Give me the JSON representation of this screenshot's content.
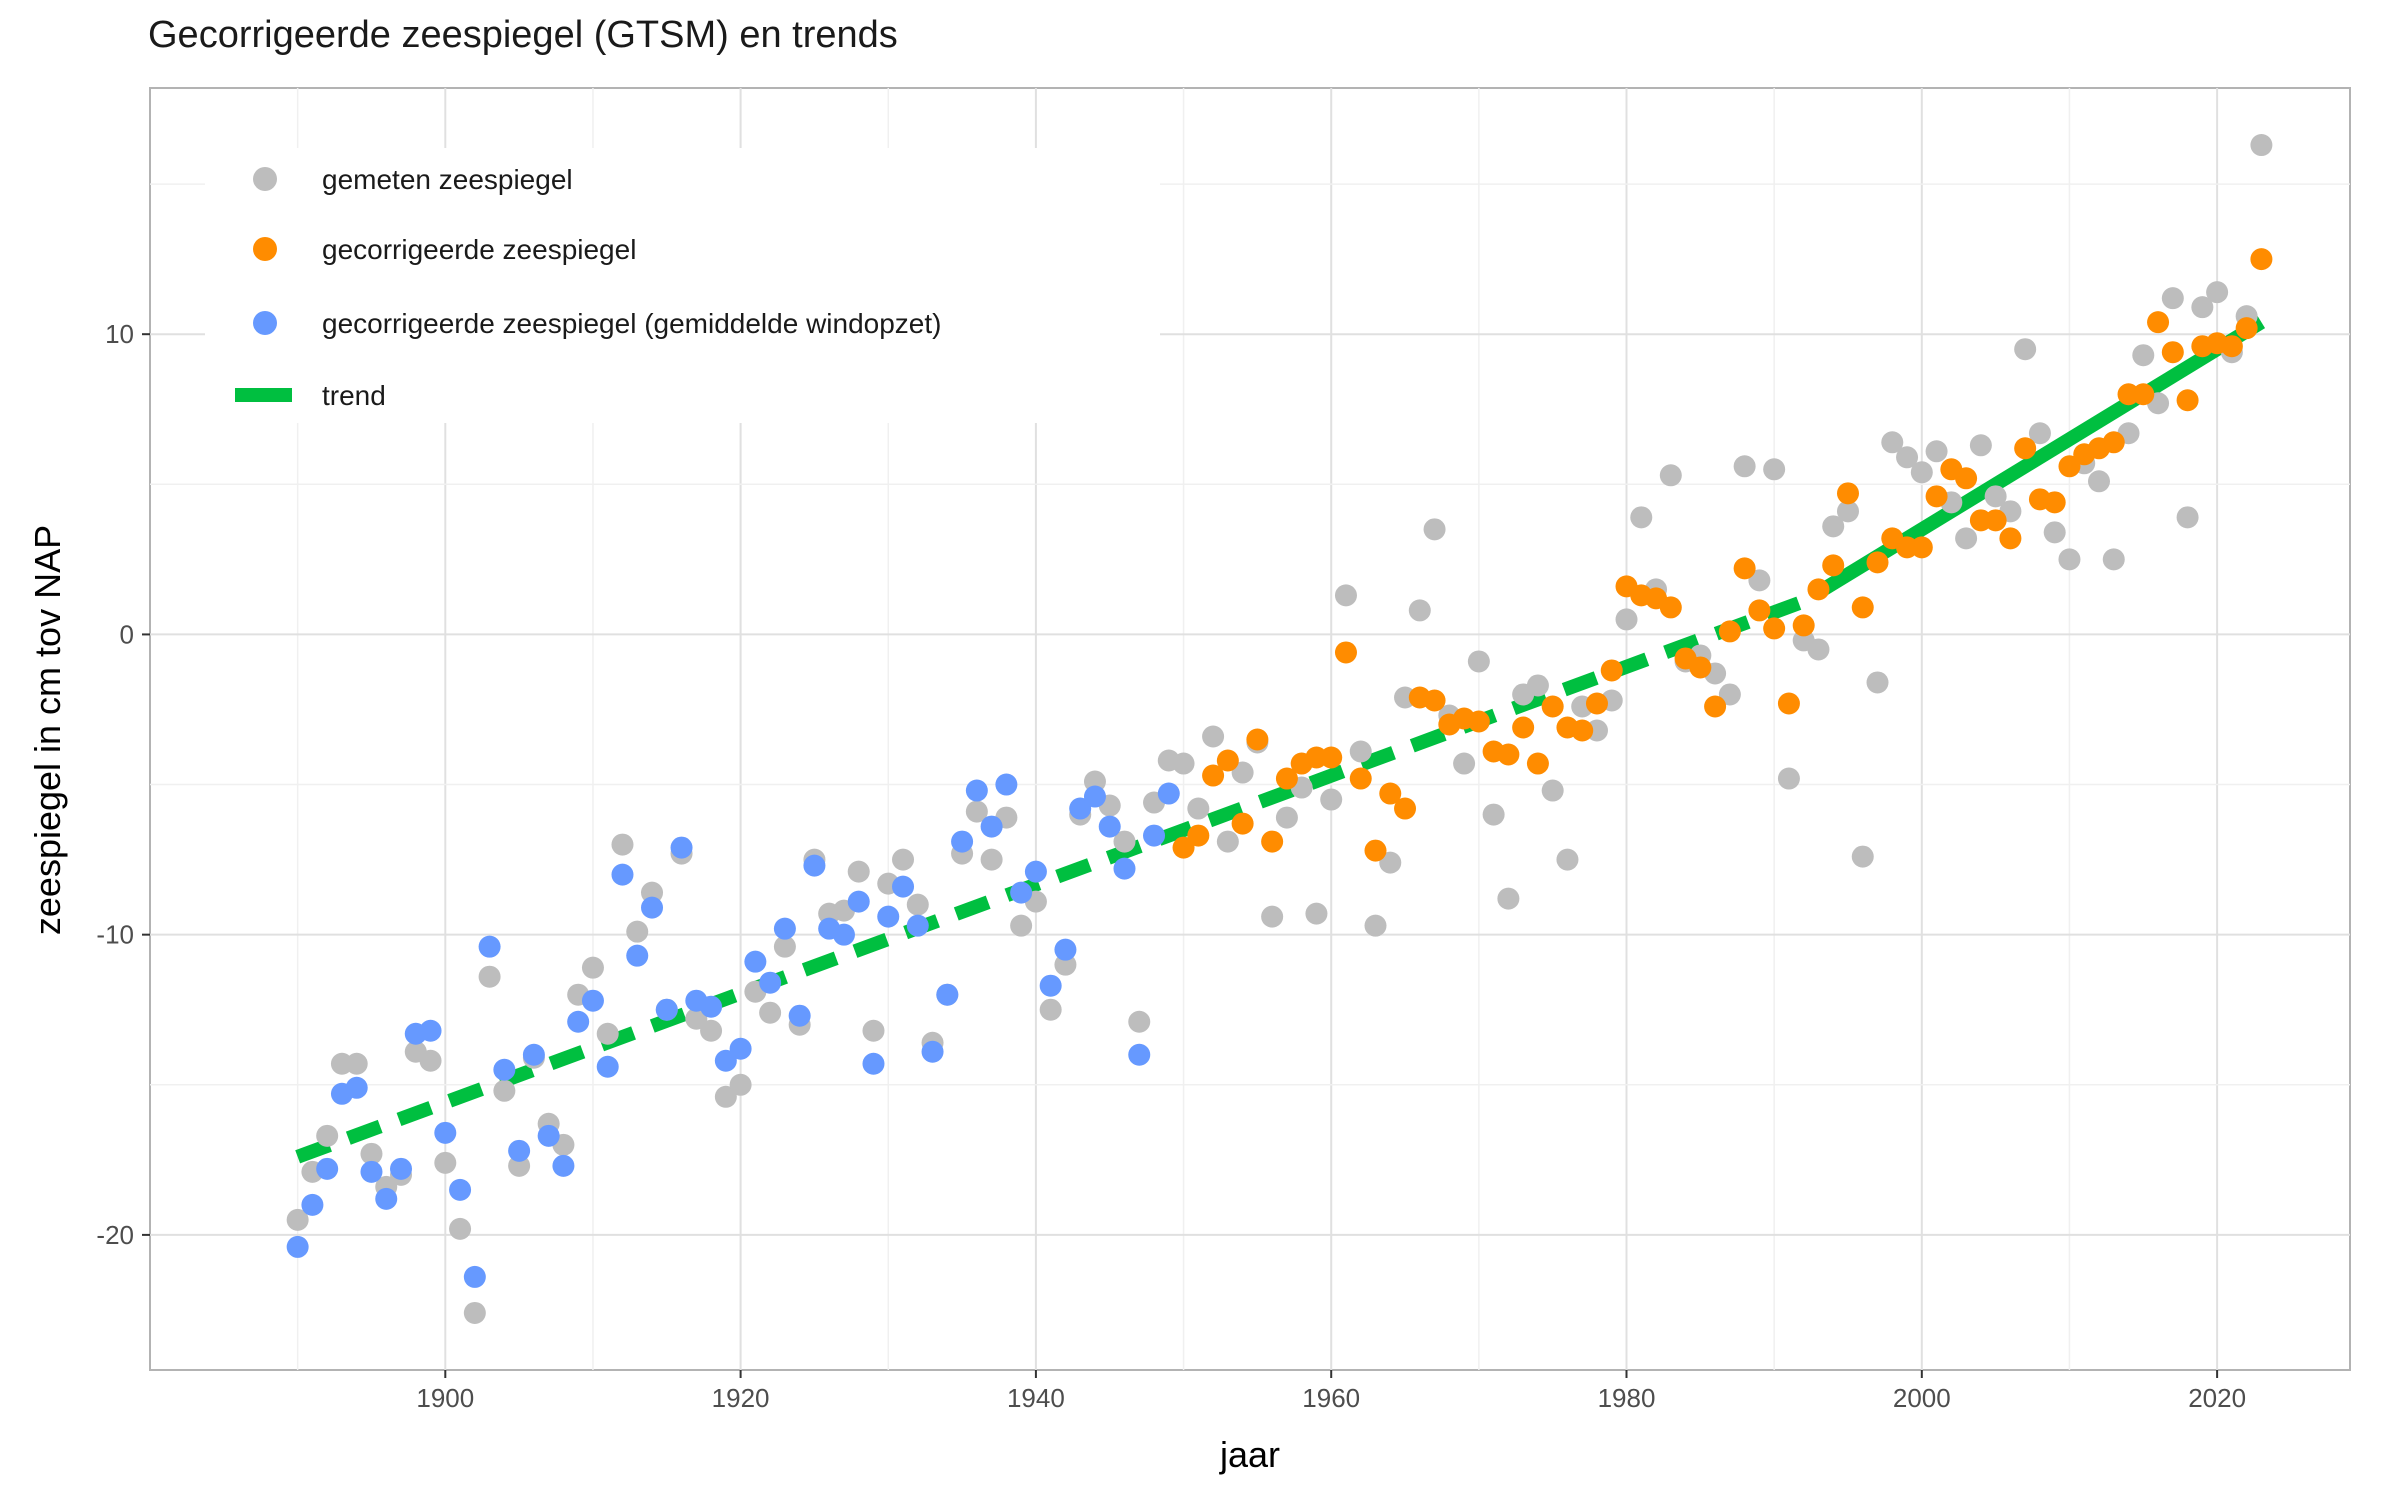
{
  "chart_data": {
    "type": "scatter",
    "title": "Gecorrigeerde zeespiegel (GTSM) en trends",
    "xlabel": "jaar",
    "ylabel": "zeespiegel in cm tov NAP",
    "xlim": [
      1880,
      2029
    ],
    "ylim": [
      -24.5,
      18.2
    ],
    "xticks": [
      1900,
      1920,
      1940,
      1960,
      1980,
      2000,
      2020
    ],
    "yticks": [
      -20,
      -10,
      0,
      10
    ],
    "grid": true,
    "legend_position": "top-left",
    "colors": {
      "measured": "#bdbdbd",
      "corrected": "#ff8c00",
      "corrected_mean_wind": "#6699ff",
      "trend": "#00bf40"
    },
    "series": [
      {
        "name": "gemeten zeespiegel",
        "type": "scatter",
        "points": [
          [
            1890,
            -19.5
          ],
          [
            1891,
            -17.9
          ],
          [
            1892,
            -16.7
          ],
          [
            1893,
            -14.3
          ],
          [
            1894,
            -14.3
          ],
          [
            1895,
            -17.3
          ],
          [
            1896,
            -18.4
          ],
          [
            1897,
            -18
          ],
          [
            1898,
            -13.9
          ],
          [
            1899,
            -14.2
          ],
          [
            1900,
            -17.6
          ],
          [
            1901,
            -19.8
          ],
          [
            1902,
            -22.6
          ],
          [
            1903,
            -11.4
          ],
          [
            1904,
            -15.2
          ],
          [
            1905,
            -17.7
          ],
          [
            1906,
            -14.1
          ],
          [
            1907,
            -16.3
          ],
          [
            1908,
            -17
          ],
          [
            1909,
            -12
          ],
          [
            1910,
            -11.1
          ],
          [
            1911,
            -13.3
          ],
          [
            1912,
            -7
          ],
          [
            1913,
            -9.9
          ],
          [
            1914,
            -8.6
          ],
          [
            1915,
            -12.5
          ],
          [
            1916,
            -7.3
          ],
          [
            1917,
            -12.8
          ],
          [
            1918,
            -13.2
          ],
          [
            1919,
            -15.4
          ],
          [
            1920,
            -15
          ],
          [
            1921,
            -11.9
          ],
          [
            1922,
            -12.6
          ],
          [
            1923,
            -10.4
          ],
          [
            1924,
            -13
          ],
          [
            1925,
            -7.5
          ],
          [
            1926,
            -9.3
          ],
          [
            1927,
            -9.2
          ],
          [
            1928,
            -7.9
          ],
          [
            1929,
            -13.2
          ],
          [
            1930,
            -8.3
          ],
          [
            1931,
            -7.5
          ],
          [
            1932,
            -9
          ],
          [
            1933,
            -13.6
          ],
          [
            1934,
            -12
          ],
          [
            1935,
            -7.3
          ],
          [
            1936,
            -5.9
          ],
          [
            1937,
            -7.5
          ],
          [
            1938,
            -6.1
          ],
          [
            1939,
            -9.7
          ],
          [
            1940,
            -8.9
          ],
          [
            1941,
            -12.5
          ],
          [
            1942,
            -11
          ],
          [
            1943,
            -6
          ],
          [
            1944,
            -4.9
          ],
          [
            1945,
            -5.7
          ],
          [
            1946,
            -6.9
          ],
          [
            1947,
            -12.9
          ],
          [
            1948,
            -5.6
          ],
          [
            1949,
            -4.2
          ],
          [
            1950,
            -4.3
          ],
          [
            1951,
            -5.8
          ],
          [
            1952,
            -3.4
          ],
          [
            1953,
            -6.9
          ],
          [
            1954,
            -4.6
          ],
          [
            1955,
            -3.6
          ],
          [
            1956,
            -9.4
          ],
          [
            1957,
            -6.1
          ],
          [
            1958,
            -5.1
          ],
          [
            1959,
            -9.3
          ],
          [
            1960,
            -5.5
          ],
          [
            1961,
            1.3
          ],
          [
            1962,
            -3.9
          ],
          [
            1963,
            -9.7
          ],
          [
            1964,
            -7.6
          ],
          [
            1965,
            -2.1
          ],
          [
            1966,
            0.8
          ],
          [
            1967,
            3.5
          ],
          [
            1968,
            -2.7
          ],
          [
            1969,
            -4.3
          ],
          [
            1970,
            -0.9
          ],
          [
            1971,
            -6
          ],
          [
            1972,
            -8.8
          ],
          [
            1973,
            -2
          ],
          [
            1974,
            -1.7
          ],
          [
            1975,
            -5.2
          ],
          [
            1976,
            -7.5
          ],
          [
            1977,
            -2.4
          ],
          [
            1978,
            -3.2
          ],
          [
            1979,
            -2.2
          ],
          [
            1980,
            0.5
          ],
          [
            1981,
            3.9
          ],
          [
            1982,
            1.5
          ],
          [
            1983,
            5.3
          ],
          [
            1984,
            -0.9
          ],
          [
            1985,
            -0.7
          ],
          [
            1986,
            -1.3
          ],
          [
            1987,
            -2
          ],
          [
            1988,
            5.6
          ],
          [
            1989,
            1.8
          ],
          [
            1990,
            5.5
          ],
          [
            1991,
            -4.8
          ],
          [
            1992,
            -0.2
          ],
          [
            1993,
            -0.5
          ],
          [
            1994,
            3.6
          ],
          [
            1995,
            4.1
          ],
          [
            1996,
            -7.4
          ],
          [
            1997,
            -1.6
          ],
          [
            1998,
            6.4
          ],
          [
            1999,
            5.9
          ],
          [
            2000,
            5.4
          ],
          [
            2001,
            6.1
          ],
          [
            2002,
            4.4
          ],
          [
            2003,
            3.2
          ],
          [
            2004,
            6.3
          ],
          [
            2005,
            4.6
          ],
          [
            2006,
            4.1
          ],
          [
            2007,
            9.5
          ],
          [
            2008,
            6.7
          ],
          [
            2009,
            3.4
          ],
          [
            2010,
            2.5
          ],
          [
            2011,
            5.7
          ],
          [
            2012,
            5.1
          ],
          [
            2013,
            2.5
          ],
          [
            2014,
            6.7
          ],
          [
            2015,
            9.3
          ],
          [
            2016,
            7.7
          ],
          [
            2017,
            11.2
          ],
          [
            2018,
            3.9
          ],
          [
            2019,
            10.9
          ],
          [
            2020,
            11.4
          ],
          [
            2021,
            9.4
          ],
          [
            2022,
            10.6
          ],
          [
            2023,
            16.3
          ]
        ]
      },
      {
        "name": "gecorrigeerde zeespiegel",
        "type": "scatter",
        "points": [
          [
            1950,
            -7.1
          ],
          [
            1951,
            -6.7
          ],
          [
            1952,
            -4.7
          ],
          [
            1953,
            -4.2
          ],
          [
            1954,
            -6.3
          ],
          [
            1955,
            -3.5
          ],
          [
            1956,
            -6.9
          ],
          [
            1957,
            -4.8
          ],
          [
            1958,
            -4.3
          ],
          [
            1959,
            -4.1
          ],
          [
            1960,
            -4.1
          ],
          [
            1961,
            -0.6
          ],
          [
            1962,
            -4.8
          ],
          [
            1963,
            -7.2
          ],
          [
            1964,
            -5.3
          ],
          [
            1965,
            -5.8
          ],
          [
            1966,
            -2.1
          ],
          [
            1967,
            -2.2
          ],
          [
            1968,
            -3
          ],
          [
            1969,
            -2.8
          ],
          [
            1970,
            -2.9
          ],
          [
            1971,
            -3.9
          ],
          [
            1972,
            -4
          ],
          [
            1973,
            -3.1
          ],
          [
            1974,
            -4.3
          ],
          [
            1975,
            -2.4
          ],
          [
            1976,
            -3.1
          ],
          [
            1977,
            -3.2
          ],
          [
            1978,
            -2.3
          ],
          [
            1979,
            -1.2
          ],
          [
            1980,
            1.6
          ],
          [
            1981,
            1.3
          ],
          [
            1982,
            1.2
          ],
          [
            1983,
            0.9
          ],
          [
            1984,
            -0.8
          ],
          [
            1985,
            -1.1
          ],
          [
            1986,
            -2.4
          ],
          [
            1987,
            0.1
          ],
          [
            1988,
            2.2
          ],
          [
            1989,
            0.8
          ],
          [
            1990,
            0.2
          ],
          [
            1991,
            -2.3
          ],
          [
            1992,
            0.3
          ],
          [
            1993,
            1.5
          ],
          [
            1994,
            2.3
          ],
          [
            1995,
            4.7
          ],
          [
            1996,
            0.9
          ],
          [
            1997,
            2.4
          ],
          [
            1998,
            3.2
          ],
          [
            1999,
            2.9
          ],
          [
            2000,
            2.9
          ],
          [
            2001,
            4.6
          ],
          [
            2002,
            5.5
          ],
          [
            2003,
            5.2
          ],
          [
            2004,
            3.8
          ],
          [
            2005,
            3.8
          ],
          [
            2006,
            3.2
          ],
          [
            2007,
            6.2
          ],
          [
            2008,
            4.5
          ],
          [
            2009,
            4.4
          ],
          [
            2010,
            5.6
          ],
          [
            2011,
            6
          ],
          [
            2012,
            6.2
          ],
          [
            2013,
            6.4
          ],
          [
            2014,
            8
          ],
          [
            2015,
            8
          ],
          [
            2016,
            10.4
          ],
          [
            2017,
            9.4
          ],
          [
            2018,
            7.8
          ],
          [
            2019,
            9.6
          ],
          [
            2020,
            9.7
          ],
          [
            2021,
            9.6
          ],
          [
            2022,
            10.2
          ],
          [
            2023,
            12.5
          ]
        ]
      },
      {
        "name": "gecorrigeerde zeespiegel (gemiddelde windopzet)",
        "type": "scatter",
        "points": [
          [
            1890,
            -20.4
          ],
          [
            1891,
            -19
          ],
          [
            1892,
            -17.8
          ],
          [
            1893,
            -15.3
          ],
          [
            1894,
            -15.1
          ],
          [
            1895,
            -17.9
          ],
          [
            1896,
            -18.8
          ],
          [
            1897,
            -17.8
          ],
          [
            1898,
            -13.3
          ],
          [
            1899,
            -13.2
          ],
          [
            1900,
            -16.6
          ],
          [
            1901,
            -18.5
          ],
          [
            1902,
            -21.4
          ],
          [
            1903,
            -10.4
          ],
          [
            1904,
            -14.5
          ],
          [
            1905,
            -17.2
          ],
          [
            1906,
            -14
          ],
          [
            1907,
            -16.7
          ],
          [
            1908,
            -17.7
          ],
          [
            1909,
            -12.9
          ],
          [
            1910,
            -12.2
          ],
          [
            1911,
            -14.4
          ],
          [
            1912,
            -8
          ],
          [
            1913,
            -10.7
          ],
          [
            1914,
            -9.1
          ],
          [
            1915,
            -12.5
          ],
          [
            1916,
            -7.1
          ],
          [
            1917,
            -12.2
          ],
          [
            1918,
            -12.4
          ],
          [
            1919,
            -14.2
          ],
          [
            1920,
            -13.8
          ],
          [
            1921,
            -10.9
          ],
          [
            1922,
            -11.6
          ],
          [
            1923,
            -9.8
          ],
          [
            1924,
            -12.7
          ],
          [
            1925,
            -7.7
          ],
          [
            1926,
            -9.8
          ],
          [
            1927,
            -10
          ],
          [
            1928,
            -8.9
          ],
          [
            1929,
            -14.3
          ],
          [
            1930,
            -9.4
          ],
          [
            1931,
            -8.4
          ],
          [
            1932,
            -9.7
          ],
          [
            1933,
            -13.9
          ],
          [
            1934,
            -12
          ],
          [
            1935,
            -6.9
          ],
          [
            1936,
            -5.2
          ],
          [
            1937,
            -6.4
          ],
          [
            1938,
            -5
          ],
          [
            1939,
            -8.6
          ],
          [
            1940,
            -7.9
          ],
          [
            1941,
            -11.7
          ],
          [
            1942,
            -10.5
          ],
          [
            1943,
            -5.8
          ],
          [
            1944,
            -5.4
          ],
          [
            1945,
            -6.4
          ],
          [
            1946,
            -7.8
          ],
          [
            1947,
            -14
          ],
          [
            1948,
            -6.7
          ],
          [
            1949,
            -5.3
          ]
        ]
      },
      {
        "name": "trend",
        "type": "line",
        "segments": [
          {
            "style": "dashed",
            "points": [
              [
                1890,
                -17.4
              ],
              [
                1992,
                1.1
              ]
            ]
          },
          {
            "style": "solid",
            "points": [
              [
                1993,
                1.4
              ],
              [
                2023,
                10.4
              ]
            ]
          }
        ]
      }
    ]
  }
}
